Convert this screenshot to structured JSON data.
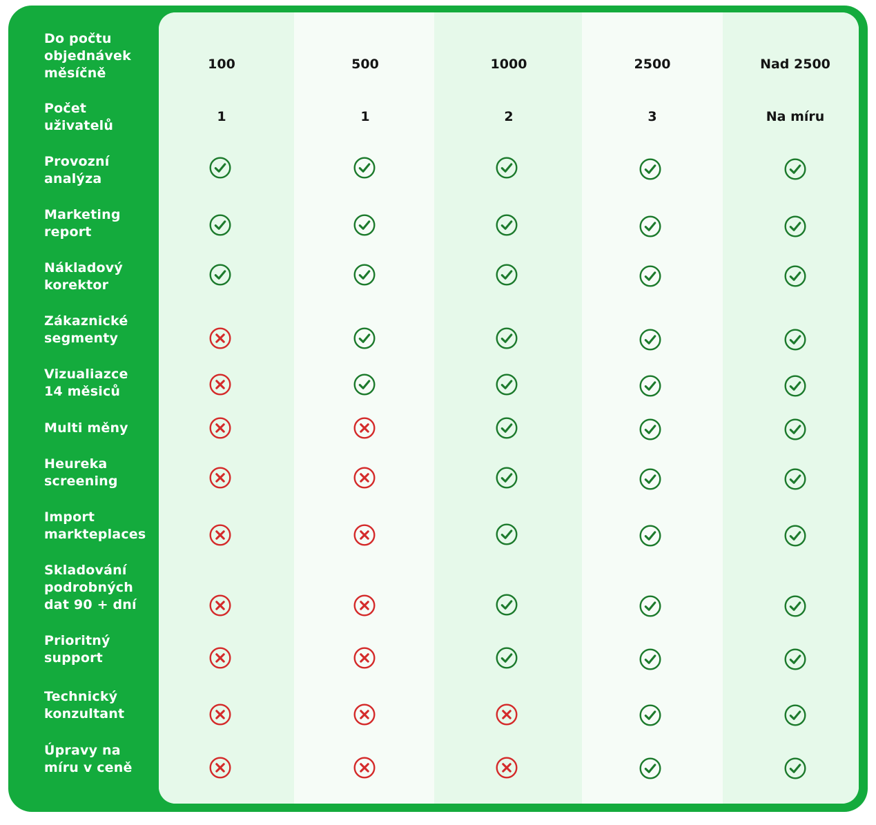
{
  "colors": {
    "frame": "#14ab3d",
    "panel_tint": "#e6f9ea",
    "panel_light": "#f6fcf7",
    "check": "#1c7a2c",
    "cross": "#d42a2a"
  },
  "columns": [
    "100",
    "500",
    "1000",
    "2500",
    "Nad 2500"
  ],
  "rows": [
    {
      "label": "Do počtu\nobjednávek\nměsíčně",
      "type": "text",
      "values": [
        "100",
        "500",
        "1000",
        "2500",
        "Nad 2500"
      ]
    },
    {
      "label": "Počet\nuživatelů",
      "type": "text",
      "values": [
        "1",
        "1",
        "2",
        "3",
        "Na míru"
      ]
    },
    {
      "label": "Provozní\nanalýza",
      "type": "icon",
      "values": [
        "check-icon",
        "check-icon",
        "check-icon",
        "check-icon",
        "check-icon"
      ]
    },
    {
      "label": "Marketing\nreport",
      "type": "icon",
      "values": [
        "check-icon",
        "check-icon",
        "check-icon",
        "check-icon",
        "check-icon"
      ]
    },
    {
      "label": "Nákladový\nkorektor",
      "type": "icon",
      "values": [
        "check-icon",
        "check-icon",
        "check-icon",
        "check-icon",
        "check-icon"
      ]
    },
    {
      "label": "Zákaznické\nsegmenty",
      "type": "icon",
      "values": [
        "cross-icon",
        "check-icon",
        "check-icon",
        "check-icon",
        "check-icon"
      ]
    },
    {
      "label": "Vizualiazce\n14 měsiců",
      "type": "icon",
      "values": [
        "cross-icon",
        "check-icon",
        "check-icon",
        "check-icon",
        "check-icon"
      ]
    },
    {
      "label": "Multi měny",
      "type": "icon",
      "values": [
        "cross-icon",
        "cross-icon",
        "check-icon",
        "check-icon",
        "check-icon"
      ]
    },
    {
      "label": "Heureka\nscreening",
      "type": "icon",
      "values": [
        "cross-icon",
        "cross-icon",
        "check-icon",
        "check-icon",
        "check-icon"
      ]
    },
    {
      "label": "Import\nmarkteplaces",
      "type": "icon",
      "values": [
        "cross-icon",
        "cross-icon",
        "check-icon",
        "check-icon",
        "check-icon"
      ]
    },
    {
      "label": "Skladování\npodrobných\ndat 90 + dní",
      "type": "icon",
      "values": [
        "cross-icon",
        "cross-icon",
        "check-icon",
        "check-icon",
        "check-icon"
      ]
    },
    {
      "label": "Prioritný\nsupport",
      "type": "icon",
      "values": [
        "cross-icon",
        "cross-icon",
        "check-icon",
        "check-icon",
        "check-icon"
      ]
    },
    {
      "label": "Technický\nkonzultant",
      "type": "icon",
      "values": [
        "cross-icon",
        "cross-icon",
        "cross-icon",
        "check-icon",
        "check-icon"
      ]
    },
    {
      "label": "Úpravy na\nmíru v ceně",
      "type": "icon",
      "values": [
        "cross-icon",
        "cross-icon",
        "cross-icon",
        "check-icon",
        "check-icon"
      ]
    }
  ]
}
